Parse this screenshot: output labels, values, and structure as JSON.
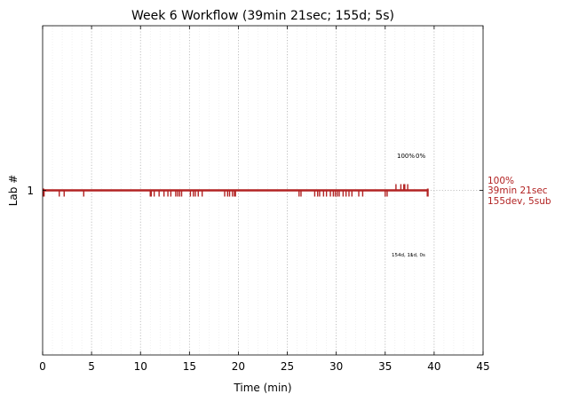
{
  "chart_data": {
    "type": "line",
    "title": "Week 6 Workflow (39min 21sec; 155d; 5s)",
    "xlabel": "Time (min)",
    "ylabel": "Lab #",
    "xlim": [
      0,
      45
    ],
    "xticks": [
      "0",
      "5",
      "10",
      "15",
      "20",
      "25",
      "30",
      "35",
      "40",
      "45"
    ],
    "yticks": [
      "1"
    ],
    "grid": "vertical dotted, major every 5 min, minor every 1 min",
    "color": "#b22222",
    "series": [
      {
        "lab": 1,
        "segment": [
          0,
          39.35
        ],
        "dev_ticks_min": [
          0.15,
          1.7,
          2.2,
          4.2,
          11.0,
          11.1,
          11.4,
          11.9,
          12.4,
          12.8,
          13.1,
          13.6,
          13.8,
          14.0,
          14.2,
          15.1,
          15.4,
          15.6,
          15.9,
          16.3,
          18.6,
          18.9,
          19.1,
          19.4,
          19.6,
          19.7,
          26.2,
          26.4,
          27.8,
          28.1,
          28.3,
          28.7,
          29.0,
          29.4,
          29.7,
          29.9,
          30.1,
          30.3,
          30.7,
          31.0,
          31.3,
          31.6,
          32.3,
          32.7,
          35.0,
          35.2,
          39.3
        ],
        "sub_ticks_min": [
          36.1,
          36.6,
          36.9,
          37.0,
          37.3
        ]
      }
    ],
    "annotations": {
      "top_left": "100%",
      "top_right": "0%",
      "bottom": "154d, 1s",
      "bottom_overlap": "1d, 0s"
    },
    "right_labels": [
      "100%",
      "39min 21sec",
      "155dev, 5sub"
    ]
  }
}
